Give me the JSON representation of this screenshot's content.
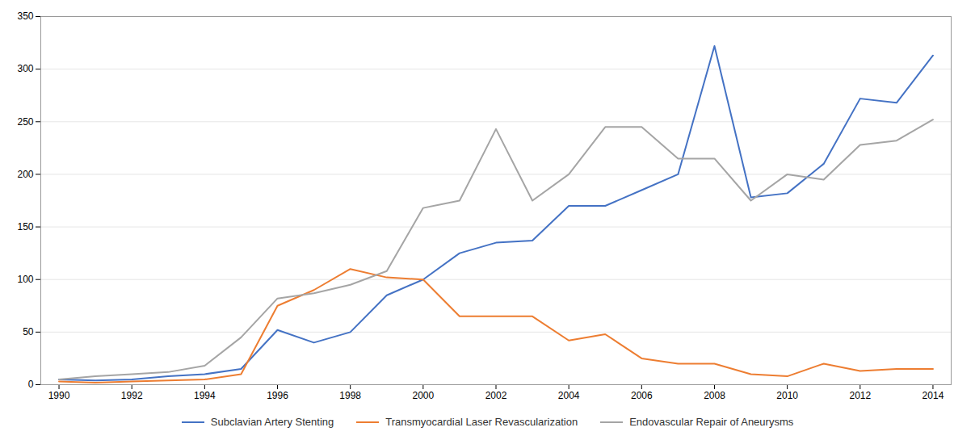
{
  "chart_data": {
    "type": "line",
    "x": [
      1990,
      1991,
      1992,
      1993,
      1994,
      1995,
      1996,
      1997,
      1998,
      1999,
      2000,
      2001,
      2002,
      2003,
      2004,
      2005,
      2006,
      2007,
      2008,
      2009,
      2010,
      2011,
      2012,
      2013,
      2014
    ],
    "series": [
      {
        "name": "Subclavian Artery Stenting",
        "color": "#4472C4",
        "values": [
          5,
          4,
          5,
          8,
          10,
          15,
          52,
          40,
          50,
          85,
          100,
          125,
          135,
          137,
          170,
          170,
          185,
          200,
          322,
          178,
          182,
          210,
          272,
          268,
          313
        ]
      },
      {
        "name": "Transmyocardial Laser Revascularization",
        "color": "#ED7D31",
        "values": [
          3,
          2,
          3,
          4,
          5,
          10,
          75,
          90,
          110,
          102,
          100,
          65,
          65,
          65,
          42,
          48,
          25,
          20,
          20,
          10,
          8,
          20,
          13,
          15,
          15
        ]
      },
      {
        "name": "Endovascular Repair of Aneurysms",
        "color": "#A5A5A5",
        "values": [
          5,
          8,
          10,
          12,
          18,
          45,
          82,
          87,
          95,
          108,
          168,
          175,
          243,
          175,
          200,
          245,
          245,
          215,
          215,
          175,
          200,
          195,
          228,
          232,
          252
        ]
      }
    ],
    "xlim": [
      1989.5,
      2014.5
    ],
    "xticks": [
      1990,
      1992,
      1994,
      1996,
      1998,
      2000,
      2002,
      2004,
      2006,
      2008,
      2010,
      2012,
      2014
    ],
    "ylim": [
      0,
      350
    ],
    "yticks": [
      0,
      50,
      100,
      150,
      200,
      250,
      300,
      350
    ],
    "grid": true,
    "legend": "bottom"
  }
}
